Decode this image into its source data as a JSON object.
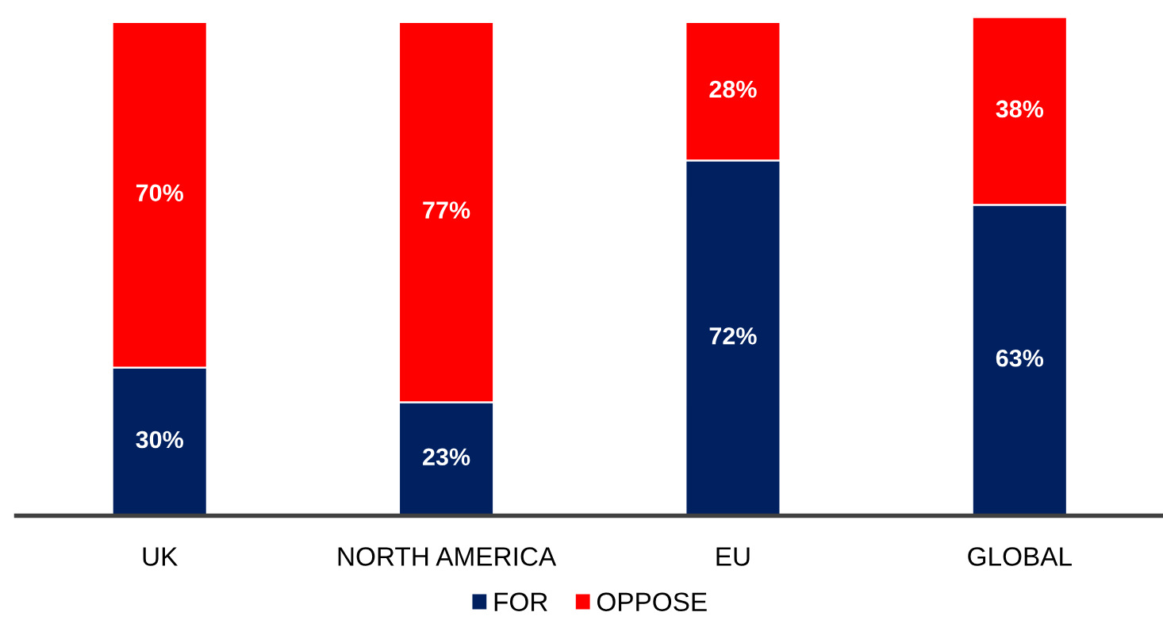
{
  "chart_data": {
    "type": "bar",
    "stacked": true,
    "categories": [
      "UK",
      "NORTH AMERICA",
      "EU",
      "GLOBAL"
    ],
    "series": [
      {
        "name": "FOR",
        "color": "#002060",
        "values": [
          30,
          23,
          72,
          63
        ],
        "value_labels": [
          "30%",
          "23%",
          "72%",
          "63%"
        ]
      },
      {
        "name": "OPPOSE",
        "color": "#ff0000",
        "values": [
          70,
          77,
          28,
          38
        ],
        "value_labels": [
          "70%",
          "77%",
          "28%",
          "38%"
        ]
      }
    ],
    "legend": "bottom",
    "grid": false,
    "tick_labels": "x"
  }
}
